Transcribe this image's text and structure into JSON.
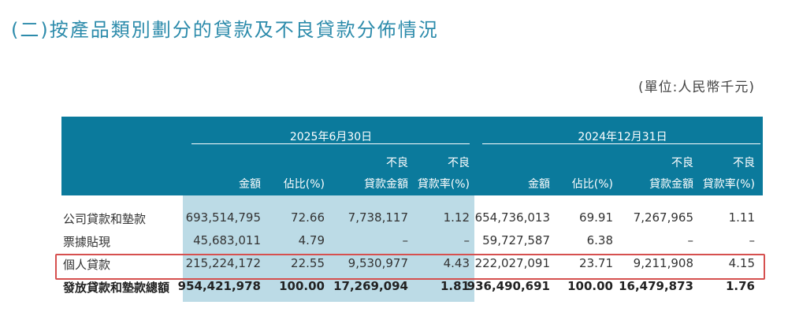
{
  "title": "(二)按產品類別劃分的貸款及不良貸款分佈情況",
  "unit": "(單位:人民幣千元)",
  "periods": [
    "2025年6月30日",
    "2024年12月31日"
  ],
  "headers": {
    "amount": "金額",
    "pct": "佔比(%)",
    "npl_top": "不良",
    "npl_bottom": "貸款金額",
    "rate_top": "不良",
    "rate_bottom": "貸款率(%)"
  },
  "rows": [
    {
      "label": "公司貸款和墊款",
      "v": [
        "693,514,795",
        "72.66",
        "7,738,117",
        "1.12",
        "654,736,013",
        "69.91",
        "7,267,965",
        "1.11"
      ]
    },
    {
      "label": "票據貼現",
      "v": [
        "45,683,011",
        "4.79",
        "–",
        "–",
        "59,727,587",
        "6.38",
        "–",
        "–"
      ]
    },
    {
      "label": "個人貸款",
      "v": [
        "215,224,172",
        "22.55",
        "9,530,977",
        "4.43",
        "222,027,091",
        "23.71",
        "9,211,908",
        "4.15"
      ],
      "highlighted": true
    },
    {
      "label": "發放貸款和墊款總額",
      "v": [
        "954,421,978",
        "100.00",
        "17,269,094",
        "1.81",
        "936,490,691",
        "100.00",
        "16,479,873",
        "1.76"
      ],
      "bold": true
    }
  ],
  "colors": {
    "header": "#0b7a9c",
    "band": "#bcdbe6",
    "highlight": "#d6504f",
    "title": "#2c8bab"
  }
}
